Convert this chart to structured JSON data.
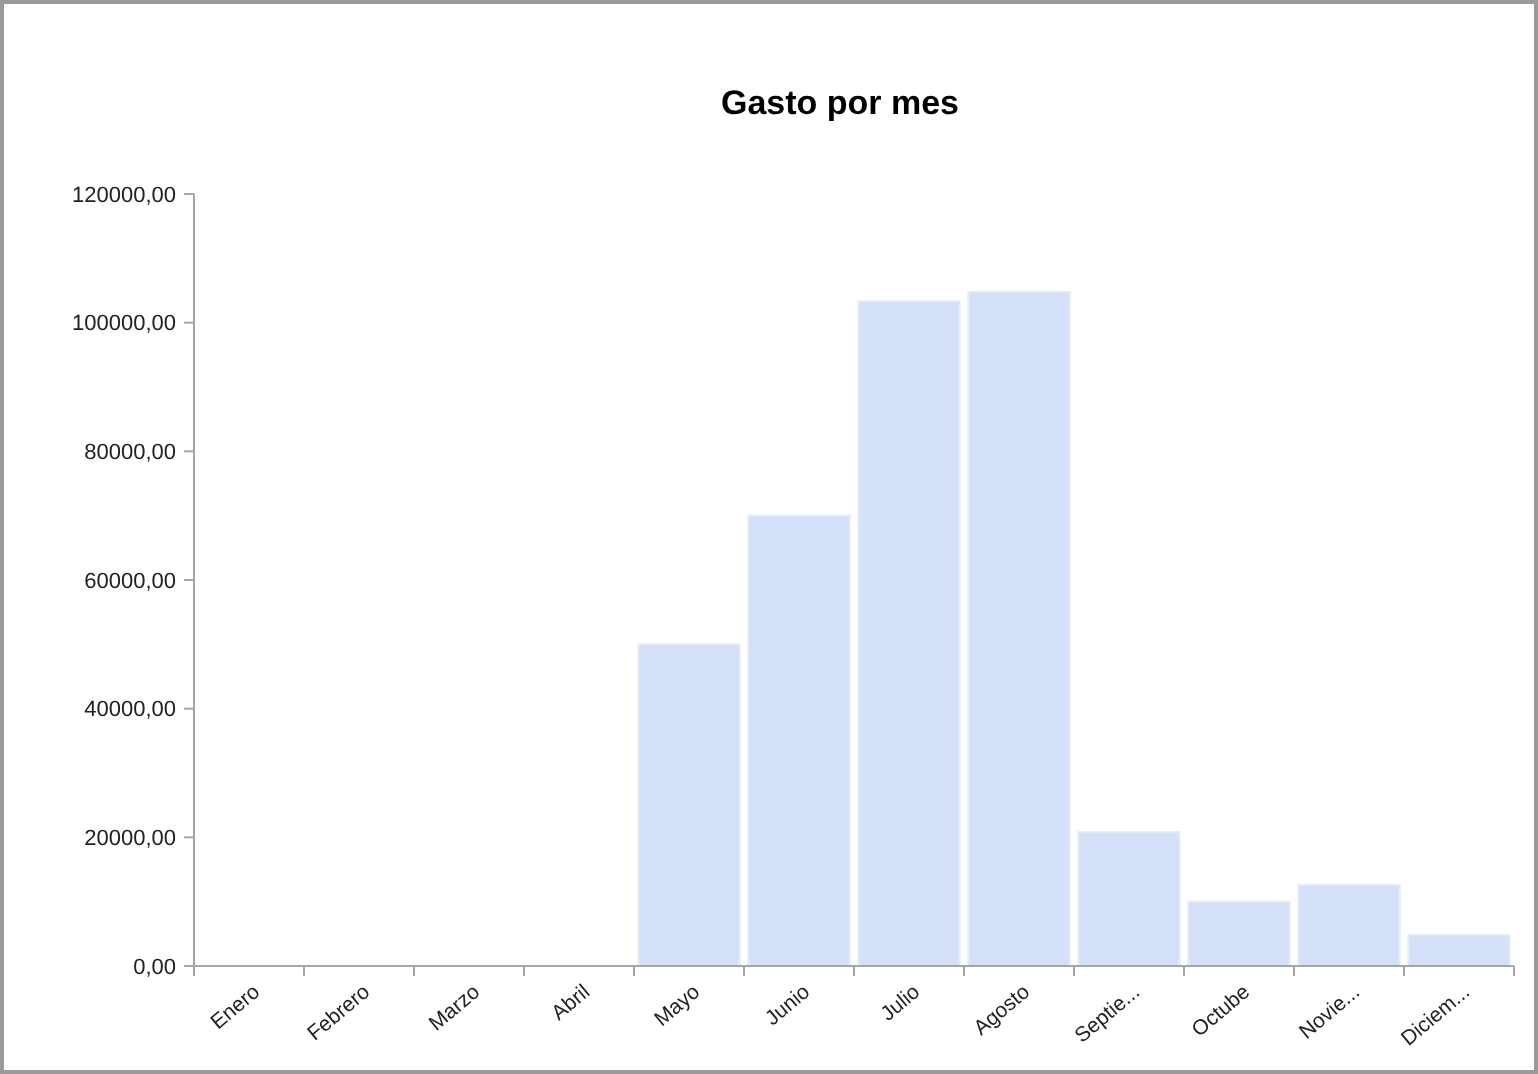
{
  "chart_data": {
    "type": "bar",
    "title": "Gasto por mes",
    "categories": [
      "Enero",
      "Febrero",
      "Marzo",
      "Abril",
      "Mayo",
      "Junio",
      "Julio",
      "Agosto",
      "Septie...",
      "Octube",
      "Novie...",
      "Diciem..."
    ],
    "values": [
      0,
      0,
      0,
      0,
      50000,
      70000,
      103300,
      104800,
      20800,
      10000,
      12600,
      4800
    ],
    "color": "#d4e0f7",
    "ylim": [
      0,
      120000
    ],
    "yticks": [
      {
        "value": 0,
        "label": "0,00"
      },
      {
        "value": 20000,
        "label": "20000,00"
      },
      {
        "value": 40000,
        "label": "40000,00"
      },
      {
        "value": 60000,
        "label": "60000,00"
      },
      {
        "value": 80000,
        "label": "80000,00"
      },
      {
        "value": 100000,
        "label": "100000,00"
      },
      {
        "value": 120000,
        "label": "120000,00"
      }
    ],
    "grid": false
  }
}
